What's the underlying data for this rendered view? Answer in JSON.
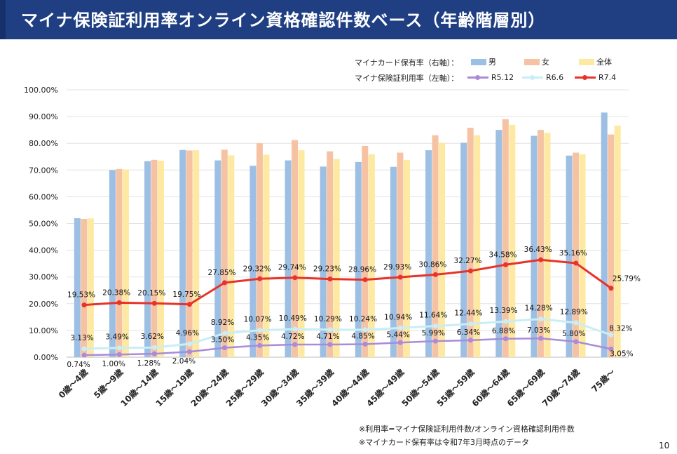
{
  "header": {
    "title": "マイナ保険証利用率オンライン資格確認件数ベース（年齢階層別）"
  },
  "legend": {
    "bar_group_label": "マイナカード保有率（右軸）：",
    "line_group_label": "マイナ保険証利用率（左軸）：",
    "bars": [
      {
        "name": "男",
        "color": "#9dbfe3"
      },
      {
        "name": "女",
        "color": "#f5c3a4"
      },
      {
        "name": "全体",
        "color": "#fde9a1"
      }
    ],
    "lines": [
      {
        "name": "R5.12",
        "color": "#a98bd8"
      },
      {
        "name": "R6.6",
        "color": "#c9eef5"
      },
      {
        "name": "R7.4",
        "color": "#e8332a"
      }
    ]
  },
  "chart_data": {
    "type": "bar",
    "categories": [
      "0歳～4歳",
      "5歳～9歳",
      "10歳～14歳",
      "15歳～19歳",
      "20歳～24歳",
      "25歳～29歳",
      "30歳～34歳",
      "35歳～39歳",
      "40歳～44歳",
      "45歳～49歳",
      "50歳～54歳",
      "55歳～59歳",
      "60歳～64歳",
      "65歳～69歳",
      "70歳～74歳",
      "75歳～"
    ],
    "y_ticks": [
      "0.00%",
      "10.00%",
      "20.00%",
      "30.00%",
      "40.00%",
      "50.00%",
      "60.00%",
      "70.00%",
      "80.00%",
      "90.00%",
      "100.00%"
    ],
    "ylim": [
      0,
      100
    ],
    "bar_series": [
      {
        "name": "男",
        "values": [
          52,
          70,
          73.3,
          77.5,
          73.6,
          71.6,
          73.6,
          71.3,
          73,
          71.2,
          77.4,
          80.2,
          85,
          82.8,
          75.4,
          91.5
        ]
      },
      {
        "name": "女",
        "values": [
          51.7,
          70.4,
          73.8,
          77.3,
          77.6,
          80,
          81.2,
          77,
          79,
          76.5,
          83,
          85.8,
          89,
          85,
          76.5,
          83.3
        ]
      },
      {
        "name": "全体",
        "values": [
          51.9,
          70.2,
          73.5,
          77.4,
          75.5,
          75.7,
          77.4,
          74.1,
          75.9,
          73.8,
          80.2,
          83,
          86.9,
          83.9,
          75.9,
          86.6
        ]
      }
    ],
    "line_series": [
      {
        "name": "R5.12",
        "values": [
          0.74,
          1.0,
          1.28,
          2.04,
          3.5,
          4.35,
          4.72,
          4.71,
          4.85,
          5.44,
          5.99,
          6.34,
          6.88,
          7.03,
          5.8,
          3.05
        ],
        "labels": [
          "0.74%",
          "1.00%",
          "1.28%",
          "2.04%",
          "3.50%",
          "4.35%",
          "4.72%",
          "4.71%",
          "4.85%",
          "5.44%",
          "5.99%",
          "6.34%",
          "6.88%",
          "7.03%",
          "5.80%",
          "3.05%"
        ]
      },
      {
        "name": "R6.6",
        "values": [
          3.13,
          3.49,
          3.62,
          4.96,
          8.92,
          10.07,
          10.49,
          10.29,
          10.24,
          10.94,
          11.64,
          12.44,
          13.39,
          14.28,
          12.89,
          8.32
        ],
        "labels": [
          "3.13%",
          "3.49%",
          "3.62%",
          "4.96%",
          "8.92%",
          "10.07%",
          "10.49%",
          "10.29%",
          "10.24%",
          "10.94%",
          "11.64%",
          "12.44%",
          "13.39%",
          "14.28%",
          "12.89%",
          "8.32%"
        ]
      },
      {
        "name": "R7.4",
        "values": [
          19.53,
          20.38,
          20.15,
          19.75,
          27.85,
          29.32,
          29.74,
          29.23,
          28.96,
          29.93,
          30.86,
          32.27,
          34.58,
          36.43,
          35.16,
          25.79
        ],
        "labels": [
          "19.53%",
          "20.38%",
          "20.15%",
          "19.75%",
          "27.85%",
          "29.32%",
          "29.74%",
          "29.23%",
          "28.96%",
          "29.93%",
          "30.86%",
          "32.27%",
          "34.58%",
          "36.43%",
          "35.16%",
          "25.79%"
        ]
      }
    ],
    "grid": true
  },
  "notes": [
    "※利用率=マイナ保険証利用件数/オンライン資格確認利用件数",
    "※マイナカード保有率は令和7年3月時点のデータ"
  ],
  "page_number": "10"
}
